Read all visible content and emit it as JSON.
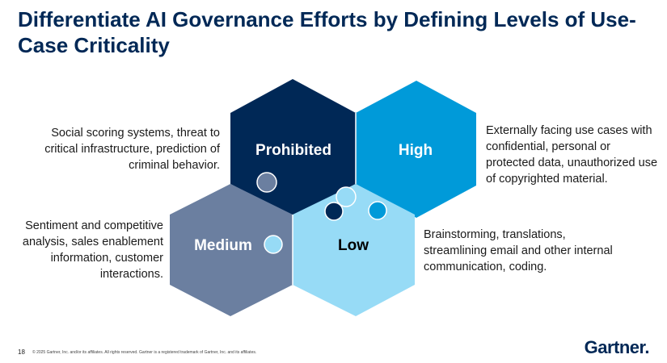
{
  "title": "Differentiate AI Governance Efforts by Defining Levels of Use-Case Criticality",
  "levels": {
    "prohibited": {
      "label": "Prohibited",
      "color": "#002856",
      "description": "Social scoring systems, threat to critical infrastructure, prediction of criminal behavior."
    },
    "high": {
      "label": "High",
      "color": "#009ad9",
      "description": "Externally facing use cases with confidential, personal or protected data, unauthorized use of copyrighted material."
    },
    "medium": {
      "label": "Medium",
      "color": "#6b7fa0",
      "description": "Sentiment and competitive analysis, sales enablement information, customer interactions."
    },
    "low": {
      "label": "Low",
      "color": "#97dbf6",
      "description": "Brainstorming, translations, streamlining email and other internal communication, coding."
    }
  },
  "footer": {
    "page": "18",
    "copyright": "© 2025 Gartner, Inc. and/or its affiliates. All rights reserved. Gartner is a registered trademark of Gartner, Inc. and its affiliates.",
    "logo": "Gartner."
  }
}
